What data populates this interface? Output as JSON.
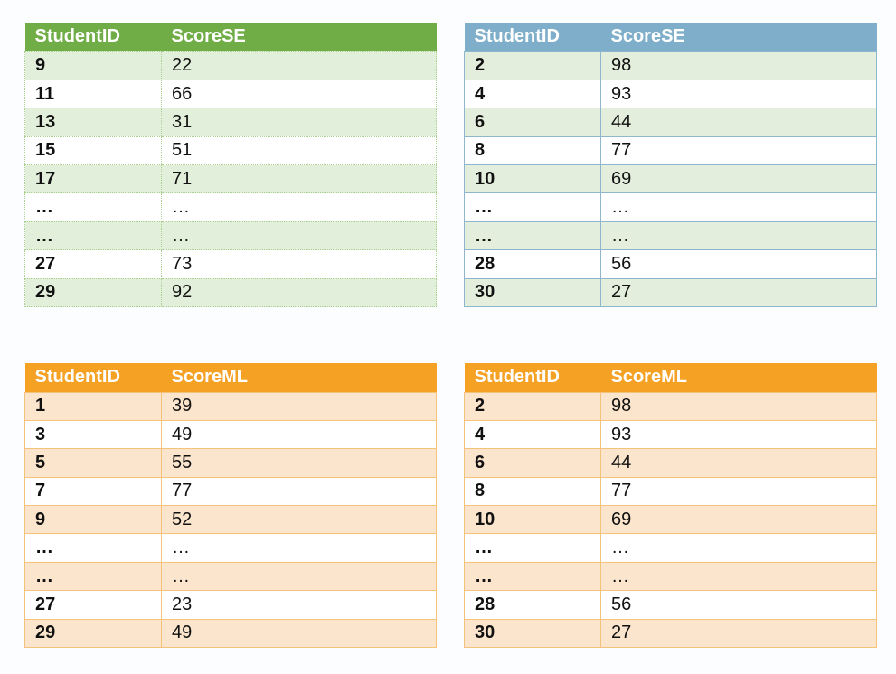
{
  "tables": [
    {
      "headers": [
        "StudentID",
        "ScoreSE"
      ],
      "rows": [
        [
          "9",
          "22"
        ],
        [
          "11",
          "66"
        ],
        [
          "13",
          "31"
        ],
        [
          "15",
          "51"
        ],
        [
          "17",
          "71"
        ],
        [
          "…",
          "…"
        ],
        [
          "…",
          "…"
        ],
        [
          "27",
          "73"
        ],
        [
          "29",
          "92"
        ]
      ],
      "header_color": "#70ad47",
      "stripe_color": "#e2efda"
    },
    {
      "headers": [
        "StudentID",
        "ScoreSE"
      ],
      "rows": [
        [
          "2",
          "98"
        ],
        [
          "4",
          "93"
        ],
        [
          "6",
          "44"
        ],
        [
          "8",
          "77"
        ],
        [
          "10",
          "69"
        ],
        [
          "…",
          "…"
        ],
        [
          "…",
          "…"
        ],
        [
          "28",
          "56"
        ],
        [
          "30",
          "27"
        ]
      ],
      "header_color": "#7eaec9",
      "stripe_color": "#e3efdc"
    },
    {
      "headers": [
        "StudentID",
        "ScoreML"
      ],
      "rows": [
        [
          "1",
          "39"
        ],
        [
          "3",
          "49"
        ],
        [
          "5",
          "55"
        ],
        [
          "7",
          "77"
        ],
        [
          "9",
          "52"
        ],
        [
          "…",
          "…"
        ],
        [
          "…",
          "…"
        ],
        [
          "27",
          "23"
        ],
        [
          "29",
          "49"
        ]
      ],
      "header_color": "#f4a124",
      "stripe_color": "#fce5cd"
    },
    {
      "headers": [
        "StudentID",
        "ScoreML"
      ],
      "rows": [
        [
          "2",
          "98"
        ],
        [
          "4",
          "93"
        ],
        [
          "6",
          "44"
        ],
        [
          "8",
          "77"
        ],
        [
          "10",
          "69"
        ],
        [
          "…",
          "…"
        ],
        [
          "…",
          "…"
        ],
        [
          "28",
          "56"
        ],
        [
          "30",
          "27"
        ]
      ],
      "header_color": "#f4a124",
      "stripe_color": "#fce5cd"
    }
  ]
}
